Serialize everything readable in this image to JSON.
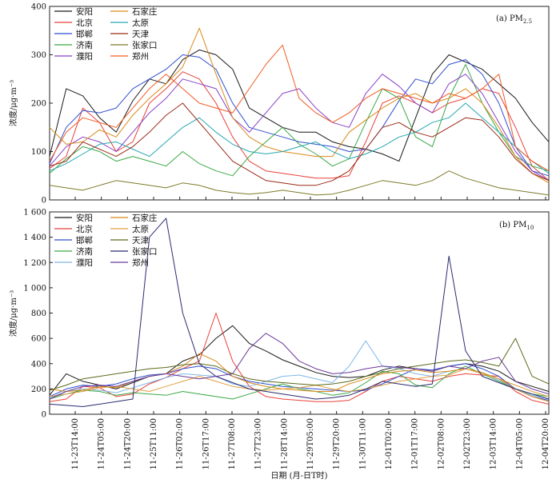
{
  "figure": {
    "xlabel": "日期 (月-日T时)",
    "x_ticks": [
      "11-23T14:00",
      "11-24T05:00",
      "11-24T20:00",
      "11-25T11:00",
      "11-26T02:00",
      "11-26T17:00",
      "11-27T08:00",
      "11-27T23:00",
      "11-28T14:00",
      "11-29T05:00",
      "11-29T20:00",
      "11-30T11:00",
      "12-01T02:00",
      "12-01T17:00",
      "12-02T08:00",
      "12-02T23:00",
      "12-03T14:00",
      "12-04T05:00",
      "12-04T20:00"
    ]
  },
  "chart_data": [
    {
      "type": "line",
      "panel": "(a) PM2.5",
      "title": "(a) PM",
      "title_sub": "2.5",
      "ylabel": "浓度/μg·m⁻³",
      "ylim": [
        0,
        400
      ],
      "yticks": [
        0,
        100,
        200,
        300,
        400
      ],
      "ytick_labels": [
        "0",
        "100",
        "200",
        "300",
        "400"
      ],
      "legend_position": "top-left",
      "series": [
        {
          "name": "安阳",
          "color": "#1a1a1a",
          "values": [
            90,
            230,
            215,
            170,
            140,
            205,
            250,
            240,
            290,
            310,
            300,
            270,
            190,
            170,
            150,
            140,
            140,
            120,
            110,
            105,
            95,
            80,
            170,
            260,
            300,
            285,
            270,
            240,
            210,
            160,
            120
          ]
        },
        {
          "name": "北京",
          "color": "#e8423a",
          "values": [
            65,
            90,
            190,
            160,
            100,
            120,
            200,
            230,
            265,
            250,
            200,
            130,
            80,
            60,
            55,
            50,
            45,
            45,
            50,
            120,
            200,
            215,
            200,
            180,
            200,
            210,
            230,
            220,
            150,
            70,
            40
          ]
        },
        {
          "name": "邯郸",
          "color": "#2f4fd0",
          "values": [
            75,
            150,
            185,
            180,
            190,
            230,
            250,
            270,
            300,
            295,
            270,
            200,
            150,
            140,
            130,
            120,
            115,
            110,
            100,
            105,
            150,
            205,
            250,
            240,
            280,
            290,
            260,
            200,
            110,
            60,
            50
          ]
        },
        {
          "name": "济南",
          "color": "#3aa845",
          "values": [
            55,
            85,
            110,
            100,
            80,
            90,
            80,
            70,
            100,
            75,
            60,
            50,
            90,
            120,
            150,
            115,
            95,
            70,
            85,
            160,
            230,
            210,
            130,
            110,
            210,
            280,
            200,
            140,
            90,
            70,
            60
          ]
        },
        {
          "name": "濮阳",
          "color": "#8a3fc8",
          "values": [
            70,
            110,
            130,
            120,
            100,
            140,
            180,
            210,
            250,
            240,
            230,
            170,
            140,
            180,
            220,
            230,
            190,
            160,
            150,
            220,
            260,
            235,
            200,
            180,
            240,
            260,
            220,
            160,
            100,
            60,
            40
          ]
        },
        {
          "name": "石家庄",
          "color": "#d98a1a",
          "values": [
            150,
            115,
            120,
            145,
            130,
            175,
            210,
            240,
            275,
            355,
            260,
            170,
            130,
            110,
            100,
            95,
            90,
            90,
            140,
            165,
            190,
            210,
            220,
            200,
            210,
            230,
            200,
            150,
            90,
            55,
            35
          ]
        },
        {
          "name": "太原",
          "color": "#26a7b0",
          "values": [
            60,
            75,
            95,
            115,
            120,
            105,
            90,
            120,
            150,
            170,
            140,
            115,
            100,
            95,
            100,
            110,
            120,
            100,
            85,
            95,
            110,
            130,
            140,
            160,
            170,
            200,
            170,
            140,
            110,
            80,
            55
          ]
        },
        {
          "name": "天津",
          "color": "#9a2a18",
          "values": [
            70,
            80,
            120,
            105,
            90,
            110,
            140,
            175,
            200,
            160,
            120,
            80,
            60,
            40,
            35,
            30,
            30,
            40,
            60,
            105,
            150,
            160,
            140,
            130,
            150,
            170,
            165,
            130,
            85,
            55,
            40
          ]
        },
        {
          "name": "张家口",
          "color": "#7f7a2a",
          "values": [
            30,
            25,
            20,
            30,
            40,
            35,
            30,
            25,
            35,
            30,
            20,
            15,
            12,
            15,
            20,
            15,
            10,
            12,
            20,
            30,
            40,
            35,
            30,
            40,
            60,
            45,
            35,
            25,
            20,
            15,
            10
          ]
        },
        {
          "name": "郑州",
          "color": "#f05a20",
          "values": [
            80,
            140,
            170,
            160,
            150,
            190,
            230,
            260,
            230,
            200,
            190,
            180,
            230,
            280,
            320,
            210,
            180,
            160,
            180,
            210,
            230,
            220,
            210,
            200,
            220,
            210,
            230,
            260,
            110,
            80,
            60
          ]
        }
      ]
    },
    {
      "type": "line",
      "panel": "(b) PM10",
      "title": "(b) PM",
      "title_sub": "10",
      "ylabel": "浓度/μg·m⁻³",
      "ylim": [
        0,
        1600
      ],
      "yticks": [
        0,
        200,
        400,
        600,
        800,
        1000,
        1200,
        1400,
        1600
      ],
      "ytick_labels": [
        "0",
        "200",
        "400",
        "600",
        "800",
        "1 000",
        "1 200",
        "1 400",
        "1 600"
      ],
      "legend_position": "top-left",
      "series": [
        {
          "name": "安阳",
          "color": "#1a1a1a",
          "values": [
            150,
            320,
            260,
            230,
            200,
            250,
            300,
            320,
            420,
            470,
            600,
            700,
            560,
            500,
            430,
            380,
            330,
            300,
            290,
            300,
            350,
            380,
            360,
            340,
            380,
            400,
            380,
            340,
            260,
            220,
            180
          ]
        },
        {
          "name": "北京",
          "color": "#e8423a",
          "values": [
            100,
            120,
            220,
            210,
            140,
            160,
            240,
            290,
            360,
            420,
            800,
            420,
            220,
            140,
            120,
            110,
            100,
            100,
            110,
            180,
            260,
            300,
            280,
            260,
            300,
            320,
            310,
            300,
            180,
            110,
            80
          ]
        },
        {
          "name": "邯郸",
          "color": "#2f4fd0",
          "values": [
            140,
            200,
            230,
            220,
            240,
            280,
            310,
            320,
            360,
            380,
            360,
            300,
            260,
            240,
            220,
            210,
            200,
            190,
            180,
            190,
            240,
            300,
            360,
            350,
            380,
            400,
            360,
            300,
            200,
            140,
            110
          ]
        },
        {
          "name": "济南",
          "color": "#3aa845",
          "values": [
            120,
            160,
            190,
            180,
            150,
            170,
            160,
            150,
            180,
            160,
            140,
            120,
            160,
            200,
            240,
            200,
            180,
            150,
            170,
            250,
            340,
            320,
            230,
            210,
            320,
            380,
            320,
            260,
            200,
            160,
            140
          ]
        },
        {
          "name": "濮阳",
          "color": "#7fb6e8",
          "values": [
            130,
            180,
            200,
            190,
            170,
            210,
            250,
            290,
            320,
            310,
            300,
            240,
            220,
            260,
            300,
            310,
            280,
            250,
            380,
            580,
            380,
            360,
            320,
            300,
            340,
            360,
            330,
            270,
            200,
            150,
            120
          ]
        },
        {
          "name": "石家庄",
          "color": "#d98a1a",
          "values": [
            200,
            180,
            190,
            220,
            210,
            260,
            300,
            320,
            380,
            480,
            420,
            300,
            250,
            220,
            200,
            190,
            180,
            180,
            240,
            280,
            320,
            340,
            350,
            330,
            340,
            360,
            330,
            280,
            200,
            140,
            100
          ]
        },
        {
          "name": "太原",
          "color": "#e0a040",
          "values": [
            140,
            160,
            180,
            210,
            220,
            200,
            180,
            220,
            260,
            300,
            260,
            220,
            200,
            190,
            200,
            210,
            230,
            200,
            180,
            200,
            230,
            260,
            280,
            300,
            310,
            360,
            320,
            280,
            230,
            180,
            140
          ]
        },
        {
          "name": "天津",
          "color": "#5a6a1a",
          "values": [
            190,
            230,
            280,
            300,
            320,
            340,
            360,
            370,
            390,
            400,
            380,
            320,
            280,
            260,
            250,
            240,
            230,
            240,
            260,
            300,
            330,
            360,
            380,
            400,
            420,
            430,
            410,
            380,
            600,
            300,
            240
          ]
        },
        {
          "name": "张家口",
          "color": "#2a2a70",
          "values": [
            80,
            70,
            60,
            80,
            100,
            120,
            1400,
            1550,
            800,
            400,
            300,
            250,
            200,
            180,
            160,
            140,
            120,
            130,
            150,
            200,
            260,
            240,
            220,
            240,
            1250,
            500,
            300,
            250,
            200,
            160,
            120
          ]
        },
        {
          "name": "郑州",
          "color": "#6a3a9a",
          "values": [
            120,
            180,
            220,
            230,
            220,
            260,
            300,
            320,
            300,
            280,
            300,
            320,
            520,
            640,
            560,
            420,
            360,
            320,
            330,
            360,
            380,
            370,
            360,
            340,
            380,
            360,
            420,
            450,
            260,
            200,
            160
          ]
        }
      ]
    }
  ]
}
